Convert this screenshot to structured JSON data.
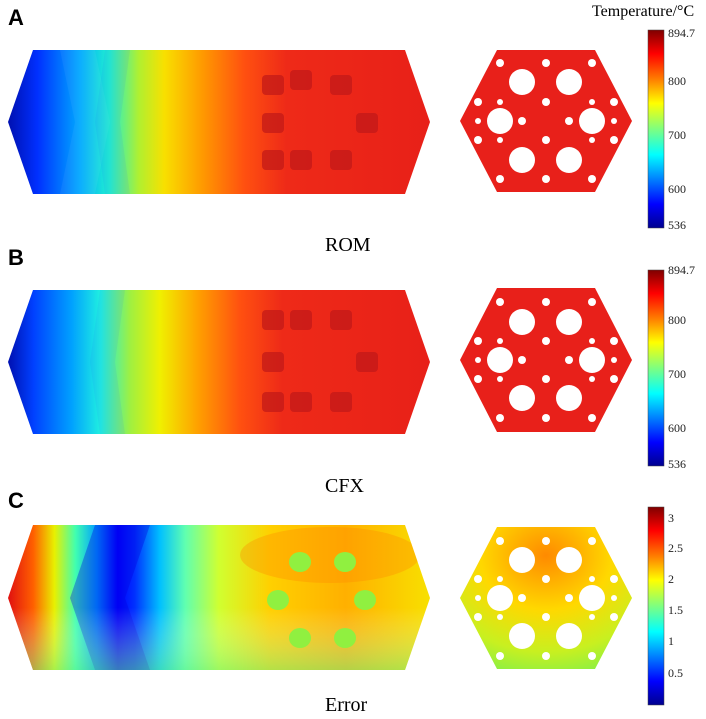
{
  "panels": [
    {
      "label": "A",
      "caption": "ROM"
    },
    {
      "label": "B",
      "caption": "CFX"
    },
    {
      "label": "C",
      "caption": "Error"
    }
  ],
  "colorbar_title": "Temperature/°C",
  "colorbars": [
    {
      "ticks": [
        "894.7",
        "800",
        "700",
        "600",
        "536"
      ]
    },
    {
      "ticks": [
        "894.7",
        "800",
        "700",
        "600",
        "536"
      ]
    },
    {
      "ticks": [
        "3",
        "2.5",
        "2",
        "1.5",
        "1",
        "0.5"
      ]
    }
  ],
  "colors": {
    "hot": "#e8201a",
    "jet_stops": [
      "#00008f",
      "#0000ff",
      "#00ffff",
      "#7fff7f",
      "#ffff00",
      "#ff7f00",
      "#ff0000",
      "#7f0000"
    ]
  }
}
